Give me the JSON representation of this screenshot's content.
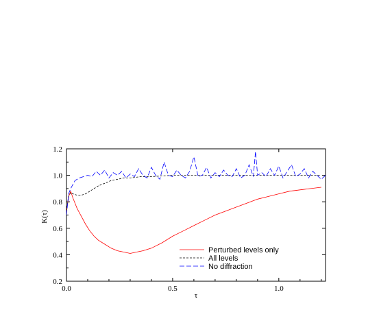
{
  "chart_data": {
    "type": "line",
    "title": "",
    "xlabel": "τ",
    "ylabel": "K(τ)",
    "xlim": [
      0.0,
      1.22
    ],
    "ylim": [
      0.2,
      1.2
    ],
    "xticks": [
      0.0,
      0.5,
      1.0
    ],
    "xtick_labels": [
      "0.0",
      "0.5",
      "1.0"
    ],
    "yticks": [
      0.2,
      0.4,
      0.6,
      0.8,
      1.0,
      1.2
    ],
    "ytick_labels": [
      "0.2",
      "0.4",
      "0.6",
      "0.8",
      "1.0",
      "1.2"
    ],
    "grid": false,
    "legend_position": "bottom-right",
    "series": [
      {
        "name": "Perturbed levels only",
        "color": "#ff0000",
        "dash": "solid",
        "x": [
          0.0,
          0.01,
          0.02,
          0.03,
          0.04,
          0.05,
          0.07,
          0.09,
          0.11,
          0.13,
          0.15,
          0.18,
          0.21,
          0.24,
          0.27,
          0.3,
          0.33,
          0.36,
          0.4,
          0.45,
          0.5,
          0.55,
          0.6,
          0.65,
          0.7,
          0.75,
          0.8,
          0.85,
          0.9,
          0.95,
          1.0,
          1.05,
          1.1,
          1.15,
          1.2
        ],
        "y": [
          0.72,
          0.84,
          0.88,
          0.83,
          0.79,
          0.75,
          0.69,
          0.63,
          0.58,
          0.54,
          0.51,
          0.48,
          0.45,
          0.43,
          0.42,
          0.41,
          0.42,
          0.43,
          0.45,
          0.49,
          0.54,
          0.58,
          0.62,
          0.66,
          0.7,
          0.73,
          0.76,
          0.79,
          0.82,
          0.84,
          0.86,
          0.88,
          0.89,
          0.9,
          0.91
        ]
      },
      {
        "name": "All levels",
        "color": "#000000",
        "dash": "short",
        "x": [
          0.0,
          0.01,
          0.02,
          0.03,
          0.05,
          0.07,
          0.09,
          0.11,
          0.13,
          0.15,
          0.18,
          0.21,
          0.24,
          0.27,
          0.3,
          0.35,
          0.4,
          0.5,
          0.6,
          0.7,
          0.8,
          0.9,
          1.0,
          1.1,
          1.2
        ],
        "y": [
          0.73,
          0.84,
          0.87,
          0.86,
          0.85,
          0.85,
          0.86,
          0.88,
          0.9,
          0.92,
          0.94,
          0.96,
          0.97,
          0.98,
          0.98,
          0.99,
          0.99,
          1.0,
          1.0,
          1.0,
          1.0,
          1.0,
          1.0,
          1.0,
          1.0
        ]
      },
      {
        "name": "No diffraction",
        "color": "#0000ff",
        "dash": "long",
        "x": [
          0.0,
          0.01,
          0.02,
          0.03,
          0.04,
          0.05,
          0.06,
          0.08,
          0.1,
          0.12,
          0.14,
          0.16,
          0.18,
          0.2,
          0.22,
          0.24,
          0.26,
          0.28,
          0.3,
          0.32,
          0.34,
          0.36,
          0.38,
          0.4,
          0.42,
          0.44,
          0.46,
          0.48,
          0.5,
          0.52,
          0.54,
          0.56,
          0.58,
          0.6,
          0.62,
          0.64,
          0.66,
          0.68,
          0.7,
          0.72,
          0.74,
          0.76,
          0.78,
          0.8,
          0.82,
          0.84,
          0.86,
          0.88,
          0.89,
          0.9,
          0.92,
          0.94,
          0.96,
          0.98,
          1.0,
          1.02,
          1.04,
          1.06,
          1.08,
          1.1,
          1.12,
          1.14,
          1.16,
          1.18,
          1.2,
          1.22
        ],
        "y": [
          0.7,
          0.86,
          0.9,
          0.93,
          0.96,
          0.97,
          0.98,
          0.99,
          1.0,
          0.99,
          1.03,
          1.0,
          1.04,
          0.98,
          1.02,
          1.0,
          1.03,
          0.98,
          1.01,
          0.99,
          1.05,
          1.0,
          0.98,
          1.06,
          1.0,
          0.97,
          1.1,
          1.0,
          0.99,
          1.04,
          1.0,
          0.98,
          1.03,
          1.14,
          0.99,
          1.0,
          1.06,
          0.98,
          1.02,
          0.99,
          1.04,
          1.0,
          0.99,
          1.05,
          0.98,
          1.0,
          1.08,
          0.99,
          1.18,
          1.0,
          1.02,
          0.99,
          1.05,
          1.0,
          1.07,
          0.98,
          1.03,
          1.08,
          0.99,
          1.01,
          1.05,
          0.98,
          1.03,
          1.0,
          0.97,
          1.0
        ]
      }
    ]
  }
}
